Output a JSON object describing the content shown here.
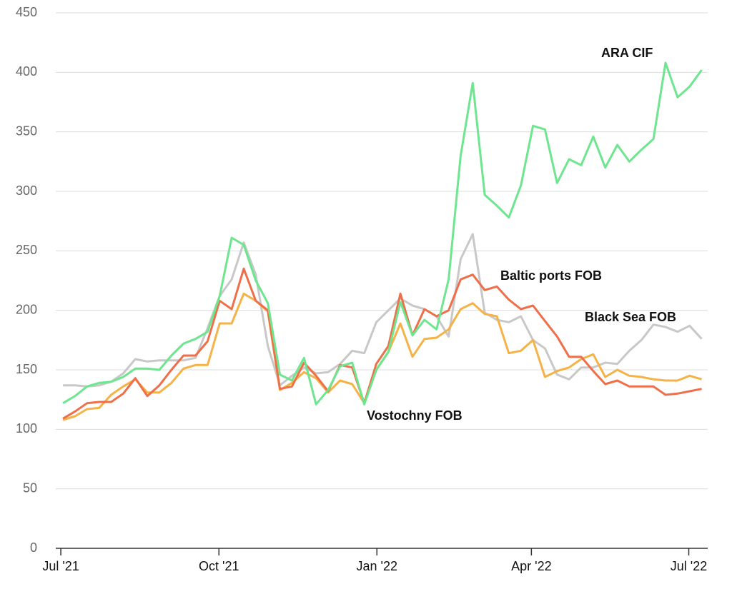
{
  "chart_data": {
    "type": "line",
    "x": [
      0,
      1,
      2,
      3,
      4,
      5,
      6,
      7,
      8,
      9,
      10,
      11,
      12,
      13,
      14,
      15,
      16,
      17,
      18,
      19,
      20,
      21,
      22,
      23,
      24,
      25,
      26,
      27,
      28,
      29,
      30,
      31,
      32,
      33,
      34,
      35,
      36,
      37,
      38,
      39,
      40,
      41,
      42,
      43,
      44,
      45,
      46,
      47,
      48,
      49,
      50,
      51,
      52,
      53
    ],
    "xlim": [
      -0.6,
      53.5
    ],
    "xticks": [
      {
        "value": -0.18,
        "label": "Jul '21"
      },
      {
        "value": 12.94,
        "label": "Oct '21"
      },
      {
        "value": 26.05,
        "label": "Jan '22"
      },
      {
        "value": 38.87,
        "label": "Apr '22"
      },
      {
        "value": 51.93,
        "label": "Jul '22"
      }
    ],
    "ylim": [
      0,
      450
    ],
    "yticks": [
      0,
      50,
      100,
      150,
      200,
      250,
      300,
      350,
      400,
      450
    ],
    "grid": true,
    "series": [
      {
        "name": "Black Sea FOB",
        "color": "#c8c8c8",
        "values": [
          137,
          137,
          136,
          137,
          140,
          147,
          159,
          157,
          158,
          158,
          158,
          160,
          185,
          212,
          226,
          257,
          230,
          170,
          137,
          145,
          152,
          147,
          148,
          155,
          166,
          164,
          190,
          200,
          210,
          204,
          201,
          195,
          178,
          243,
          264,
          198,
          192,
          190,
          195,
          175,
          168,
          146,
          142,
          152,
          152,
          156,
          155,
          166,
          175,
          188,
          186,
          182,
          187,
          176
        ]
      },
      {
        "name": "Vostochny FOB",
        "color": "#f5b247",
        "values": [
          108,
          111,
          117,
          118,
          129,
          136,
          142,
          131,
          131,
          139,
          151,
          154,
          154,
          189,
          189,
          214,
          208,
          199,
          133,
          139,
          148,
          143,
          131,
          141,
          138,
          122,
          150,
          165,
          189,
          161,
          176,
          177,
          184,
          201,
          206,
          197,
          195,
          164,
          166,
          175,
          144,
          149,
          152,
          159,
          163,
          144,
          150,
          145,
          144,
          142,
          141,
          141,
          145,
          142
        ]
      },
      {
        "name": "Baltic ports FOB",
        "color": "#ee6f4a",
        "values": [
          109,
          115,
          122,
          123,
          123,
          130,
          143,
          128,
          137,
          150,
          162,
          162,
          174,
          208,
          201,
          235,
          208,
          200,
          134,
          136,
          156,
          145,
          132,
          154,
          152,
          122,
          155,
          170,
          214,
          179,
          201,
          195,
          200,
          226,
          230,
          217,
          220,
          209,
          201,
          204,
          191,
          178,
          161,
          161,
          149,
          138,
          141,
          136,
          136,
          136,
          129,
          130,
          132,
          134
        ]
      },
      {
        "name": "ARA CIF",
        "color": "#6ee58f",
        "values": [
          122,
          128,
          136,
          139,
          140,
          144,
          151,
          151,
          150,
          162,
          172,
          176,
          182,
          212,
          261,
          255,
          225,
          206,
          146,
          141,
          160,
          121,
          133,
          153,
          156,
          121,
          150,
          165,
          207,
          179,
          192,
          184,
          226,
          330,
          391,
          297,
          288,
          278,
          305,
          355,
          352,
          307,
          327,
          322,
          346,
          320,
          339,
          325,
          335,
          344,
          408,
          379,
          388,
          402
        ]
      }
    ]
  }
}
